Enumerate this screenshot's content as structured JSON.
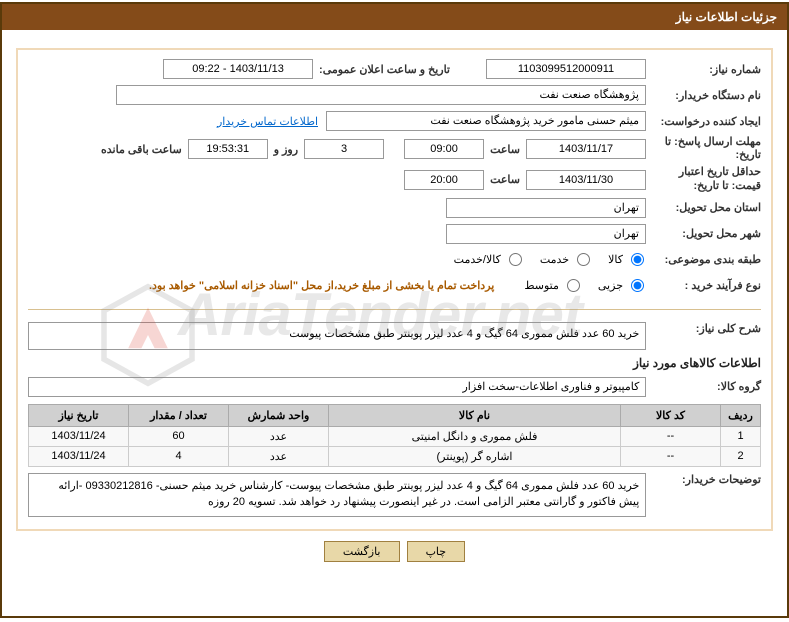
{
  "header": {
    "title": "جزئیات اطلاعات نیاز"
  },
  "fields": {
    "requirement_no": {
      "label": "شماره نیاز:",
      "value": "1103099512000911"
    },
    "announce_dt": {
      "label": "تاریخ و ساعت اعلان عمومی:",
      "value": "1403/11/13 - 09:22"
    },
    "buyer_org": {
      "label": "نام دستگاه خریدار:",
      "value": "پژوهشگاه صنعت نفت"
    },
    "requester": {
      "label": "ایجاد کننده درخواست:",
      "value": "میثم حسنی مامور خرید پژوهشگاه صنعت نفت",
      "contact_link": "اطلاعات تماس خریدار"
    },
    "reply_deadline": {
      "label": "مهلت ارسال پاسخ: تا تاریخ:",
      "date": "1403/11/17",
      "time_label": "ساعت",
      "time": "09:00",
      "days": "3",
      "days_label": "روز و",
      "countdown": "19:53:31",
      "remain_label": "ساعت باقی مانده"
    },
    "validity": {
      "label": "حداقل تاریخ اعتبار قیمت: تا تاریخ:",
      "date": "1403/11/30",
      "time_label": "ساعت",
      "time": "20:00"
    },
    "delivery_province": {
      "label": "استان محل تحویل:",
      "value": "تهران"
    },
    "delivery_city": {
      "label": "شهر محل تحویل:",
      "value": "تهران"
    },
    "category": {
      "label": "طبقه بندی موضوعی:",
      "options": [
        "کالا",
        "خدمت",
        "کالا/خدمت"
      ],
      "selected": 0
    },
    "process_type": {
      "label": "نوع فرآیند خرید :",
      "options": [
        "جزیی",
        "متوسط"
      ],
      "selected": 0,
      "payment_note": "پرداخت تمام یا بخشی از مبلغ خرید،از محل \"اسناد خزانه اسلامی\" خواهد بود."
    },
    "overall_desc": {
      "label": "شرح کلی نیاز:",
      "value": "خرید 60 عدد فلش مموری 64 گیگ و 4 عدد لیزر پوینتر طبق مشخصات پیوست"
    },
    "items_info_title": "اطلاعات کالاهای مورد نیاز",
    "group": {
      "label": "گروه کالا:",
      "value": "کامپیوتر و فناوری اطلاعات-سخت افزار"
    },
    "buyer_desc": {
      "label": "توضیحات خریدار:",
      "value": "خرید 60 عدد فلش مموری 64 گیگ و 4 عدد لیزر پوینتر طبق مشخصات پیوست- کارشناس خرید میثم حسنی- 09330212816 -ارائه پیش فاکتور و گارانتی معتبر الزامی است. در غیر اینصورت پیشنهاد رد خواهد شد. تسویه 20 روزه"
    }
  },
  "table": {
    "columns": [
      "ردیف",
      "کد کالا",
      "نام کالا",
      "واحد شمارش",
      "تعداد / مقدار",
      "تاریخ نیاز"
    ],
    "col_widths": [
      "40px",
      "100px",
      "auto",
      "100px",
      "100px",
      "100px"
    ],
    "rows": [
      [
        "1",
        "--",
        "فلش مموری و دانگل امنیتی",
        "عدد",
        "60",
        "1403/11/24"
      ],
      [
        "2",
        "--",
        "اشاره گر (پوینتر)",
        "عدد",
        "4",
        "1403/11/24"
      ]
    ]
  },
  "buttons": {
    "print": "چاپ",
    "back": "بازگشت"
  },
  "watermark": {
    "text": "AriaTender.net",
    "badge_color": "#d93a2b"
  }
}
